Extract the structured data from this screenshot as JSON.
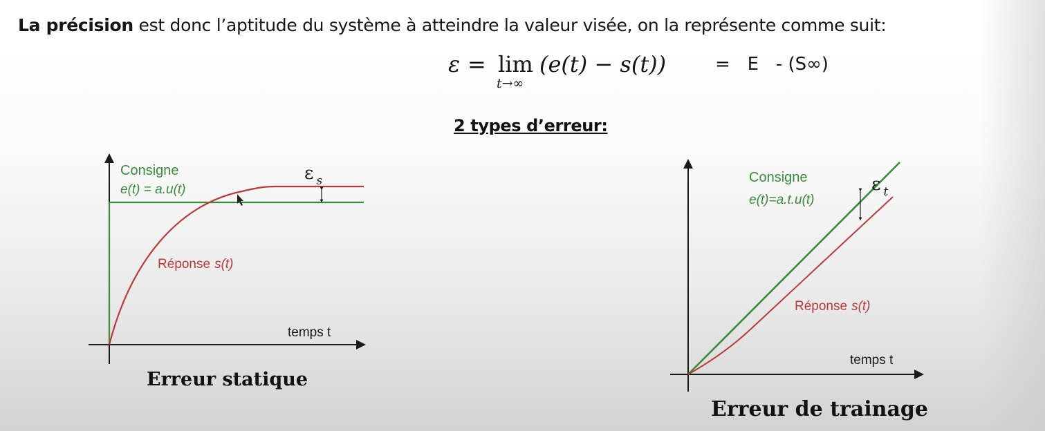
{
  "intro": {
    "bold": "La précision",
    "rest": " est donc l’aptitude du système à atteindre la valeur visée, on la représente comme suit:"
  },
  "formula": {
    "epsilon": "ε",
    "equals": "=",
    "lim": "lim",
    "lim_sub": "t→∞",
    "expression": "(e(t) − s(t))",
    "rest": "=   E   - (S∞)"
  },
  "types_heading": "2 types d’erreur:",
  "static_diagram": {
    "caption": "Erreur statique",
    "setpoint_label": "Consigne",
    "setpoint_formula": "e(t) = a.u(t)",
    "response_label": "Réponse",
    "response_var": "s(t)",
    "axis_label": "temps t",
    "error_symbol": "ε",
    "error_sub": "s"
  },
  "ramp_diagram": {
    "caption": "Erreur de trainage",
    "setpoint_label": "Consigne",
    "setpoint_formula": "e(t)=a.t.u(t)",
    "response_label": "Réponse",
    "response_var": "s(t)",
    "axis_label": "temps t",
    "error_symbol": "ε",
    "error_sub": "t"
  },
  "colors": {
    "setpoint": "#3a8a3a",
    "response": "#b83a3a",
    "axis": "#1a1a1a",
    "text": "#151515"
  }
}
